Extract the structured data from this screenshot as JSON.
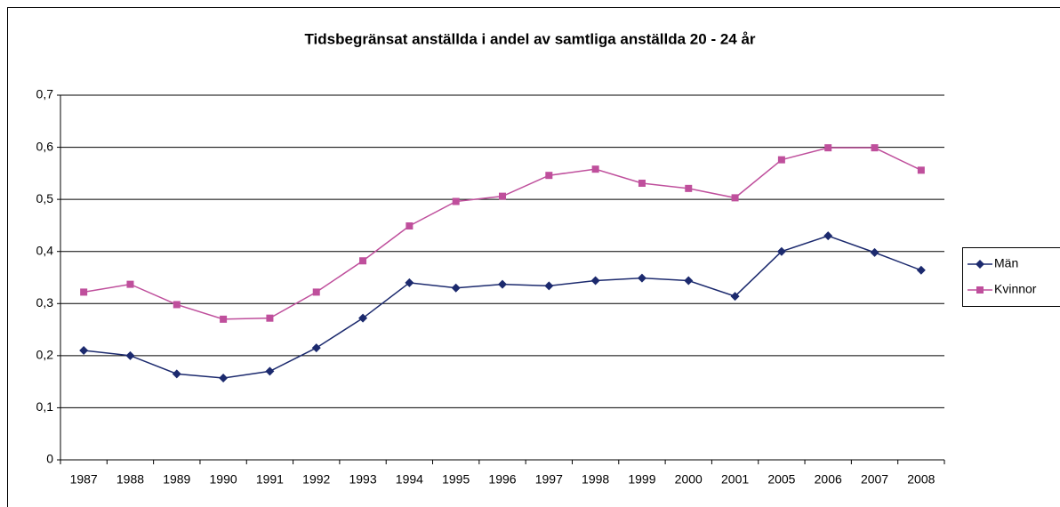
{
  "chart_data": {
    "type": "line",
    "title": "Tidsbegränsat anställda i andel av samtliga anställda 20 - 24 år",
    "categories": [
      "1987",
      "1988",
      "1989",
      "1990",
      "1991",
      "1992",
      "1993",
      "1994",
      "1995",
      "1996",
      "1997",
      "1998",
      "1999",
      "2000",
      "2001",
      "2005",
      "2006",
      "2007",
      "2008"
    ],
    "series": [
      {
        "name": "Män",
        "color": "#1c2a6e",
        "marker": "diamond",
        "values": [
          0.21,
          0.2,
          0.165,
          0.157,
          0.17,
          0.215,
          0.272,
          0.34,
          0.33,
          0.337,
          0.334,
          0.344,
          0.349,
          0.344,
          0.314,
          0.4,
          0.43,
          0.398,
          0.364
        ]
      },
      {
        "name": "Kvinnor",
        "color": "#bf4f9c",
        "marker": "square",
        "values": [
          0.322,
          0.337,
          0.298,
          0.27,
          0.272,
          0.322,
          0.382,
          0.449,
          0.496,
          0.506,
          0.546,
          0.558,
          0.531,
          0.521,
          0.503,
          0.576,
          0.599,
          0.599,
          0.556
        ]
      }
    ],
    "ylim": [
      0,
      0.7
    ],
    "yticks": [
      0,
      {
        "value": 0.1,
        "label": "0,1"
      },
      {
        "value": 0.2,
        "label": "0,2"
      },
      {
        "value": 0.3,
        "label": "0,3"
      },
      {
        "value": 0.4,
        "label": "0,4"
      },
      {
        "value": 0.5,
        "label": "0,5"
      },
      {
        "value": 0.6,
        "label": "0,6"
      },
      {
        "value": 0.7,
        "label": "0,7"
      }
    ],
    "grid": true,
    "legend": "right"
  }
}
